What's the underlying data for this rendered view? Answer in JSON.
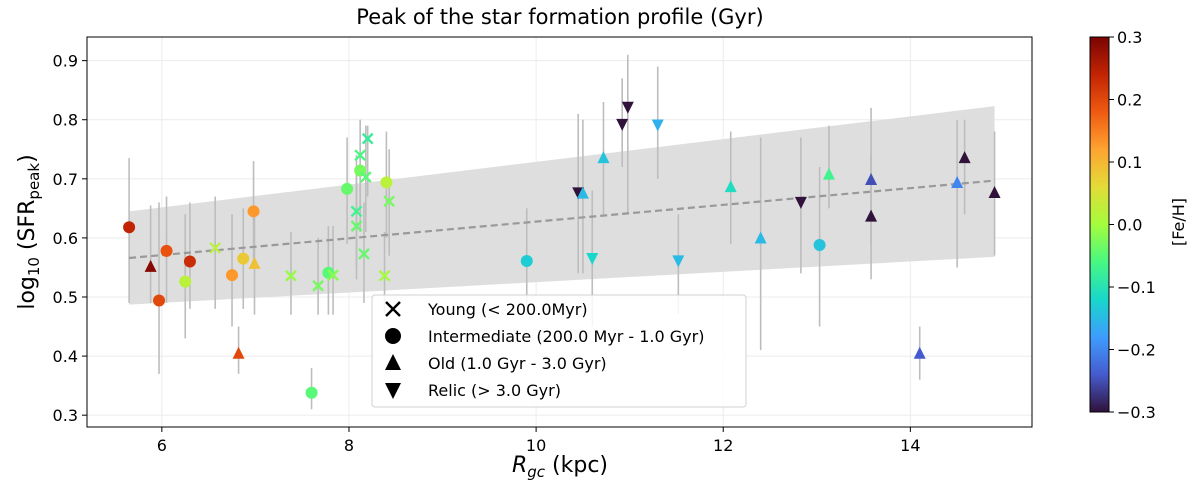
{
  "chart_data": {
    "type": "scatter",
    "title": "Peak of the star formation profile (Gyr)",
    "xlabel_main": "R",
    "xlabel_sub": "gc",
    "xlabel_unit": " (kpc)",
    "ylabel_pre": "log",
    "ylabel_sub": "10",
    "ylabel_paren_open": " (SFR",
    "ylabel_paren_sub": "peak",
    "ylabel_paren_close": ")",
    "xlim": [
      5.2,
      15.3
    ],
    "ylim": [
      0.28,
      0.94
    ],
    "xticks": [
      6,
      8,
      10,
      12,
      14
    ],
    "yticks": [
      0.3,
      0.4,
      0.5,
      0.6,
      0.7,
      0.8,
      0.9
    ],
    "ytick_labels": [
      "0.3",
      "0.4",
      "0.5",
      "0.6",
      "0.7",
      "0.8",
      "0.9"
    ],
    "grid": true,
    "colorbar": {
      "label": "[Fe/H]",
      "min": -0.3,
      "max": 0.3,
      "ticks": [
        -0.3,
        -0.2,
        -0.1,
        0.0,
        0.1,
        0.2,
        0.3
      ],
      "tick_labels": [
        "−0.3",
        "−0.2",
        "−0.1",
        "0.0",
        "0.1",
        "0.2",
        "0.3"
      ],
      "colormap": "turbo"
    },
    "fit": {
      "x": [
        5.65,
        14.9
      ],
      "y": [
        0.566,
        0.697
      ],
      "band_lower": [
        0.487,
        0.568
      ],
      "band_upper": [
        0.645,
        0.823
      ],
      "line_color": "#999999",
      "band_color": "#dcdcdc"
    },
    "legend": {
      "position": "lower-center",
      "entries": [
        {
          "marker": "x",
          "label": "Young (< 200.0Myr)"
        },
        {
          "marker": "circle",
          "label": "Intermediate (200.0 Myr - 1.0 Gyr)"
        },
        {
          "marker": "triangle-up",
          "label": "Old (1.0 Gyr - 3.0 Gyr)"
        },
        {
          "marker": "triangle-down",
          "label": "Relic (> 3.0 Gyr)"
        }
      ]
    },
    "points": [
      {
        "x": 5.65,
        "y": 0.618,
        "err": [
          0.49,
          0.735
        ],
        "feh": 0.24,
        "m": "circle"
      },
      {
        "x": 5.88,
        "y": 0.551,
        "err": [
          0.49,
          0.655
        ],
        "feh": 0.29,
        "m": "triangle-up"
      },
      {
        "x": 5.97,
        "y": 0.494,
        "err": [
          0.37,
          0.66
        ],
        "feh": 0.2,
        "m": "circle"
      },
      {
        "x": 6.05,
        "y": 0.578,
        "err": [
          0.49,
          0.67
        ],
        "feh": 0.19,
        "m": "circle"
      },
      {
        "x": 6.25,
        "y": 0.526,
        "err": [
          0.43,
          0.64
        ],
        "feh": 0.02,
        "m": "circle"
      },
      {
        "x": 6.3,
        "y": 0.56,
        "err": [
          0.48,
          0.66
        ],
        "feh": 0.23,
        "m": "circle"
      },
      {
        "x": 6.57,
        "y": 0.583,
        "err": [
          0.48,
          0.67
        ],
        "feh": 0.02,
        "m": "x"
      },
      {
        "x": 6.75,
        "y": 0.537,
        "err": [
          0.45,
          0.64
        ],
        "feh": 0.13,
        "m": "circle"
      },
      {
        "x": 6.82,
        "y": 0.404,
        "err": [
          0.37,
          0.45
        ],
        "feh": 0.2,
        "m": "triangle-up"
      },
      {
        "x": 6.87,
        "y": 0.565,
        "err": [
          0.48,
          0.65
        ],
        "feh": 0.08,
        "m": "circle"
      },
      {
        "x": 6.98,
        "y": 0.645,
        "err": [
          0.55,
          0.73
        ],
        "feh": 0.13,
        "m": "circle"
      },
      {
        "x": 6.99,
        "y": 0.556,
        "err": [
          0.47,
          0.64
        ],
        "feh": 0.09,
        "m": "triangle-up"
      },
      {
        "x": 7.38,
        "y": 0.536,
        "err": [
          0.47,
          0.61
        ],
        "feh": -0.01,
        "m": "x"
      },
      {
        "x": 7.6,
        "y": 0.338,
        "err": [
          0.31,
          0.38
        ],
        "feh": -0.05,
        "m": "circle"
      },
      {
        "x": 7.67,
        "y": 0.519,
        "err": [
          0.47,
          0.6
        ],
        "feh": -0.03,
        "m": "x"
      },
      {
        "x": 7.78,
        "y": 0.541,
        "err": [
          0.47,
          0.62
        ],
        "feh": -0.05,
        "m": "circle"
      },
      {
        "x": 7.83,
        "y": 0.537,
        "err": [
          0.47,
          0.62
        ],
        "feh": -0.02,
        "m": "x"
      },
      {
        "x": 7.98,
        "y": 0.683,
        "err": [
          0.59,
          0.77
        ],
        "feh": -0.04,
        "m": "circle"
      },
      {
        "x": 8.08,
        "y": 0.645,
        "err": [
          0.55,
          0.74
        ],
        "feh": -0.07,
        "m": "x"
      },
      {
        "x": 8.08,
        "y": 0.62,
        "err": [
          0.53,
          0.71
        ],
        "feh": -0.04,
        "m": "x"
      },
      {
        "x": 8.12,
        "y": 0.714,
        "err": [
          0.61,
          0.8
        ],
        "feh": -0.03,
        "m": "circle"
      },
      {
        "x": 8.12,
        "y": 0.74,
        "err": [
          0.65,
          0.8
        ],
        "feh": -0.06,
        "m": "x"
      },
      {
        "x": 8.16,
        "y": 0.573,
        "err": [
          0.49,
          0.66
        ],
        "feh": -0.04,
        "m": "x"
      },
      {
        "x": 8.18,
        "y": 0.703,
        "err": [
          0.61,
          0.79
        ],
        "feh": -0.05,
        "m": "x"
      },
      {
        "x": 8.2,
        "y": 0.768,
        "err": [
          0.67,
          0.79
        ],
        "feh": -0.08,
        "m": "x"
      },
      {
        "x": 8.38,
        "y": 0.536,
        "err": [
          0.47,
          0.61
        ],
        "feh": 0.0,
        "m": "x"
      },
      {
        "x": 8.4,
        "y": 0.694,
        "err": [
          0.6,
          0.78
        ],
        "feh": 0.02,
        "m": "circle"
      },
      {
        "x": 8.43,
        "y": 0.662,
        "err": [
          0.57,
          0.75
        ],
        "feh": -0.03,
        "m": "x"
      },
      {
        "x": 9.9,
        "y": 0.561,
        "err": [
          0.47,
          0.65
        ],
        "feh": -0.13,
        "m": "circle"
      },
      {
        "x": 10.45,
        "y": 0.677,
        "err": [
          0.54,
          0.81
        ],
        "feh": -0.3,
        "m": "triangle-down"
      },
      {
        "x": 10.5,
        "y": 0.675,
        "err": [
          0.54,
          0.8
        ],
        "feh": -0.15,
        "m": "triangle-up"
      },
      {
        "x": 10.6,
        "y": 0.566,
        "err": [
          0.45,
          0.68
        ],
        "feh": -0.12,
        "m": "triangle-down"
      },
      {
        "x": 10.72,
        "y": 0.735,
        "err": [
          0.64,
          0.83
        ],
        "feh": -0.14,
        "m": "triangle-up"
      },
      {
        "x": 10.92,
        "y": 0.793,
        "err": [
          0.72,
          0.87
        ],
        "feh": -0.3,
        "m": "triangle-down"
      },
      {
        "x": 10.98,
        "y": 0.822,
        "err": [
          0.64,
          0.91
        ],
        "feh": -0.3,
        "m": "triangle-down"
      },
      {
        "x": 11.3,
        "y": 0.792,
        "err": [
          0.7,
          0.89
        ],
        "feh": -0.16,
        "m": "triangle-down"
      },
      {
        "x": 11.52,
        "y": 0.562,
        "err": [
          0.47,
          0.64
        ],
        "feh": -0.15,
        "m": "triangle-down"
      },
      {
        "x": 12.08,
        "y": 0.686,
        "err": [
          0.59,
          0.78
        ],
        "feh": -0.11,
        "m": "triangle-up"
      },
      {
        "x": 12.4,
        "y": 0.599,
        "err": [
          0.41,
          0.77
        ],
        "feh": -0.15,
        "m": "triangle-up"
      },
      {
        "x": 12.83,
        "y": 0.661,
        "err": [
          0.54,
          0.77
        ],
        "feh": -0.3,
        "m": "triangle-down"
      },
      {
        "x": 13.03,
        "y": 0.588,
        "err": [
          0.45,
          0.72
        ],
        "feh": -0.14,
        "m": "circle"
      },
      {
        "x": 13.13,
        "y": 0.707,
        "err": [
          0.65,
          0.79
        ],
        "feh": -0.07,
        "m": "triangle-up"
      },
      {
        "x": 13.58,
        "y": 0.698,
        "err": [
          0.59,
          0.82
        ],
        "feh": -0.25,
        "m": "triangle-up"
      },
      {
        "x": 13.58,
        "y": 0.636,
        "err": [
          0.53,
          0.74
        ],
        "feh": -0.3,
        "m": "triangle-up"
      },
      {
        "x": 14.1,
        "y": 0.404,
        "err": [
          0.36,
          0.45
        ],
        "feh": -0.24,
        "m": "triangle-up"
      },
      {
        "x": 14.5,
        "y": 0.693,
        "err": [
          0.55,
          0.8
        ],
        "feh": -0.2,
        "m": "triangle-up"
      },
      {
        "x": 14.58,
        "y": 0.735,
        "err": [
          0.64,
          0.8
        ],
        "feh": -0.3,
        "m": "triangle-up"
      },
      {
        "x": 14.9,
        "y": 0.676,
        "err": [
          0.57,
          0.78
        ],
        "feh": -0.3,
        "m": "triangle-up"
      }
    ]
  }
}
